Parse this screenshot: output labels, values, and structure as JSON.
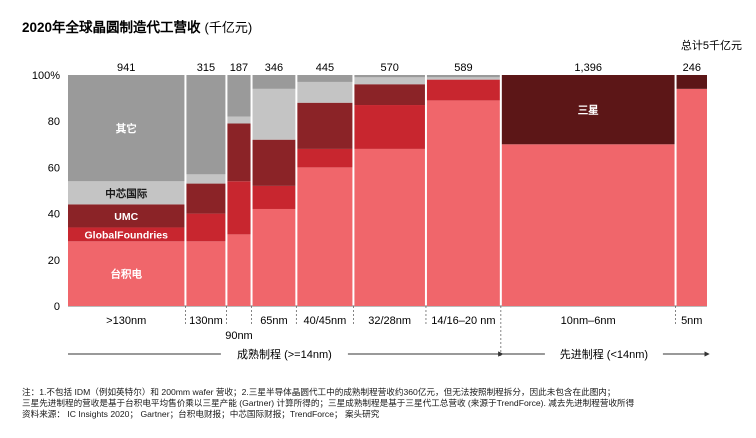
{
  "title": "2020年全球晶圆制造代工营收",
  "title_unit": "(千亿元)",
  "total_note": "总计5千亿元",
  "chart_data": {
    "type": "marimekko",
    "y_axis": {
      "ticks": [
        "0",
        "20",
        "40",
        "60",
        "80",
        "100%"
      ],
      "ylim": [
        0,
        100
      ]
    },
    "series": [
      {
        "name": "台积电",
        "color": "#f0666b"
      },
      {
        "name": "GlobalFoundries",
        "color": "#c8262f"
      },
      {
        "name": "UMC",
        "color": "#8b2327"
      },
      {
        "name": "中芯国际",
        "color": "#c4c4c4"
      },
      {
        "name": "其它",
        "color": "#9a9a9a"
      },
      {
        "name": "三星",
        "color": "#5c1617"
      }
    ],
    "columns": [
      {
        "label": ">130nm",
        "total": "941",
        "width": 941,
        "shares": [
          {
            "s": 0,
            "v": 28
          },
          {
            "s": 1,
            "v": 6
          },
          {
            "s": 2,
            "v": 10
          },
          {
            "s": 3,
            "v": 10
          },
          {
            "s": 4,
            "v": 46
          }
        ]
      },
      {
        "label": "130nm",
        "total": "315",
        "width": 315,
        "shares": [
          {
            "s": 0,
            "v": 28
          },
          {
            "s": 1,
            "v": 12
          },
          {
            "s": 2,
            "v": 13
          },
          {
            "s": 3,
            "v": 4
          },
          {
            "s": 4,
            "v": 43
          }
        ]
      },
      {
        "label": "90nm",
        "total": "187",
        "width": 187,
        "shares": [
          {
            "s": 0,
            "v": 31
          },
          {
            "s": 1,
            "v": 23
          },
          {
            "s": 2,
            "v": 25
          },
          {
            "s": 3,
            "v": 3
          },
          {
            "s": 4,
            "v": 18
          }
        ]
      },
      {
        "label": "65nm",
        "total": "346",
        "width": 346,
        "shares": [
          {
            "s": 0,
            "v": 42
          },
          {
            "s": 1,
            "v": 10
          },
          {
            "s": 2,
            "v": 20
          },
          {
            "s": 3,
            "v": 22
          },
          {
            "s": 4,
            "v": 6
          }
        ]
      },
      {
        "label": "40/45nm",
        "total": "445",
        "width": 445,
        "shares": [
          {
            "s": 0,
            "v": 60
          },
          {
            "s": 1,
            "v": 8
          },
          {
            "s": 2,
            "v": 20
          },
          {
            "s": 3,
            "v": 9
          },
          {
            "s": 4,
            "v": 3
          }
        ]
      },
      {
        "label": "32/28nm",
        "total": "570",
        "width": 570,
        "shares": [
          {
            "s": 0,
            "v": 68
          },
          {
            "s": 1,
            "v": 19
          },
          {
            "s": 2,
            "v": 9
          },
          {
            "s": 3,
            "v": 3
          },
          {
            "s": 4,
            "v": 1
          }
        ]
      },
      {
        "label": "14/16–20 nm",
        "total": "589",
        "width": 589,
        "shares": [
          {
            "s": 0,
            "v": 89
          },
          {
            "s": 1,
            "v": 9
          },
          {
            "s": 3,
            "v": 1
          },
          {
            "s": 4,
            "v": 1
          }
        ]
      },
      {
        "label": "10nm–6nm",
        "total": "1,396",
        "width": 1396,
        "shares": [
          {
            "s": 0,
            "v": 70
          },
          {
            "s": 5,
            "v": 30
          }
        ]
      },
      {
        "label": "5nm",
        "total": "246",
        "width": 246,
        "shares": [
          {
            "s": 0,
            "v": 94
          },
          {
            "s": 5,
            "v": 6
          }
        ]
      }
    ],
    "segment_labels": [
      {
        "text": "其它",
        "col": 0,
        "series": 4,
        "dark": false
      },
      {
        "text": "中芯国际",
        "col": 0,
        "series": 3,
        "dark": true
      },
      {
        "text": "UMC",
        "col": 0,
        "series": 2,
        "dark": false
      },
      {
        "text": "GlobalFoundries",
        "col": 0,
        "series": 1,
        "dark": false
      },
      {
        "text": "台积电",
        "col": 0,
        "series": 0,
        "dark": false
      },
      {
        "text": "三星",
        "col": 7,
        "series": 5,
        "dark": false
      }
    ],
    "groups": [
      {
        "label": "成熟制程 (>=14nm)",
        "from_col": 0,
        "to_col": 6
      },
      {
        "label": "先进制程 (<14nm)",
        "from_col": 7,
        "to_col": 8
      }
    ]
  },
  "notes": [
    "注：1.不包括 IDM（例如英特尔）和 200mm wafer 营收；2.三星半导体晶圆代工中的成熟制程营收约360亿元，但无法按照制程拆分，因此未包含在此图内；",
    "三星先进制程的营收是基于台积电平均售价乘以三星产能 (Gartner) 计算所得的；三星成熟制程是基于三星代工总营收 (来源于TrendForce). 减去先进制程营收所得",
    "资料来源： IC Insights 2020； Gartner；台积电财报；中芯国际财报；TrendForce； 案头研究"
  ]
}
